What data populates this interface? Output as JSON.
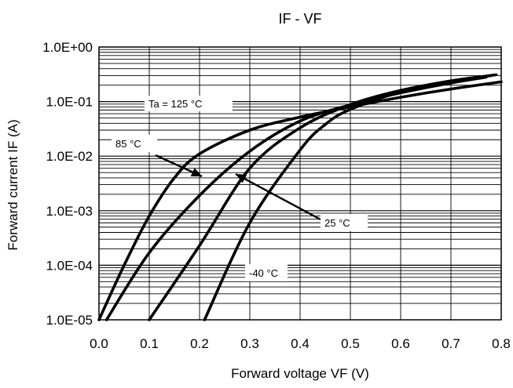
{
  "chart_data": {
    "type": "line",
    "title": "IF - VF",
    "xlabel": "Forward voltage VF (V)",
    "ylabel": "Forward current IF (A)",
    "xlim": [
      0.0,
      0.8
    ],
    "ylim": [
      1e-05,
      1.0
    ],
    "yscale": "log",
    "grid": true,
    "x_ticks": [
      "0.0",
      "0.1",
      "0.2",
      "0.3",
      "0.4",
      "0.5",
      "0.6",
      "0.7",
      "0.8"
    ],
    "y_ticks": [
      "1.0E-05",
      "1.0E-04",
      "1.0E-03",
      "1.0E-02",
      "1.0E-01",
      "1.0E+00"
    ],
    "series": [
      {
        "name": "Ta = 125 °C",
        "x": [
          0.0,
          0.05,
          0.1,
          0.15,
          0.2,
          0.3,
          0.4,
          0.5,
          0.6,
          0.7,
          0.8
        ],
        "y": [
          1e-05,
          0.0001,
          0.0008,
          0.004,
          0.011,
          0.03,
          0.052,
          0.08,
          0.12,
          0.17,
          0.23
        ]
      },
      {
        "name": "85 °C",
        "x": [
          0.015,
          0.1,
          0.2,
          0.3,
          0.4,
          0.5,
          0.6,
          0.7,
          0.77
        ],
        "y": [
          1e-05,
          0.00017,
          0.0019,
          0.0123,
          0.044,
          0.087,
          0.145,
          0.22,
          0.28
        ]
      },
      {
        "name": "25 °C",
        "x": [
          0.1,
          0.2,
          0.3,
          0.4,
          0.5,
          0.6,
          0.7,
          0.79
        ],
        "y": [
          1e-05,
          0.00023,
          0.006,
          0.033,
          0.088,
          0.16,
          0.24,
          0.31
        ]
      },
      {
        "name": "-40 °C",
        "x": [
          0.21,
          0.3,
          0.4,
          0.45,
          0.5,
          0.6,
          0.7,
          0.78
        ],
        "y": [
          1e-05,
          0.0006,
          0.013,
          0.038,
          0.072,
          0.15,
          0.23,
          0.3
        ]
      }
    ],
    "annotations": [
      {
        "text": "Ta = 125 °C"
      },
      {
        "text": "85 °C"
      },
      {
        "text": "25 °C"
      },
      {
        "text": "-40 °C"
      }
    ]
  }
}
